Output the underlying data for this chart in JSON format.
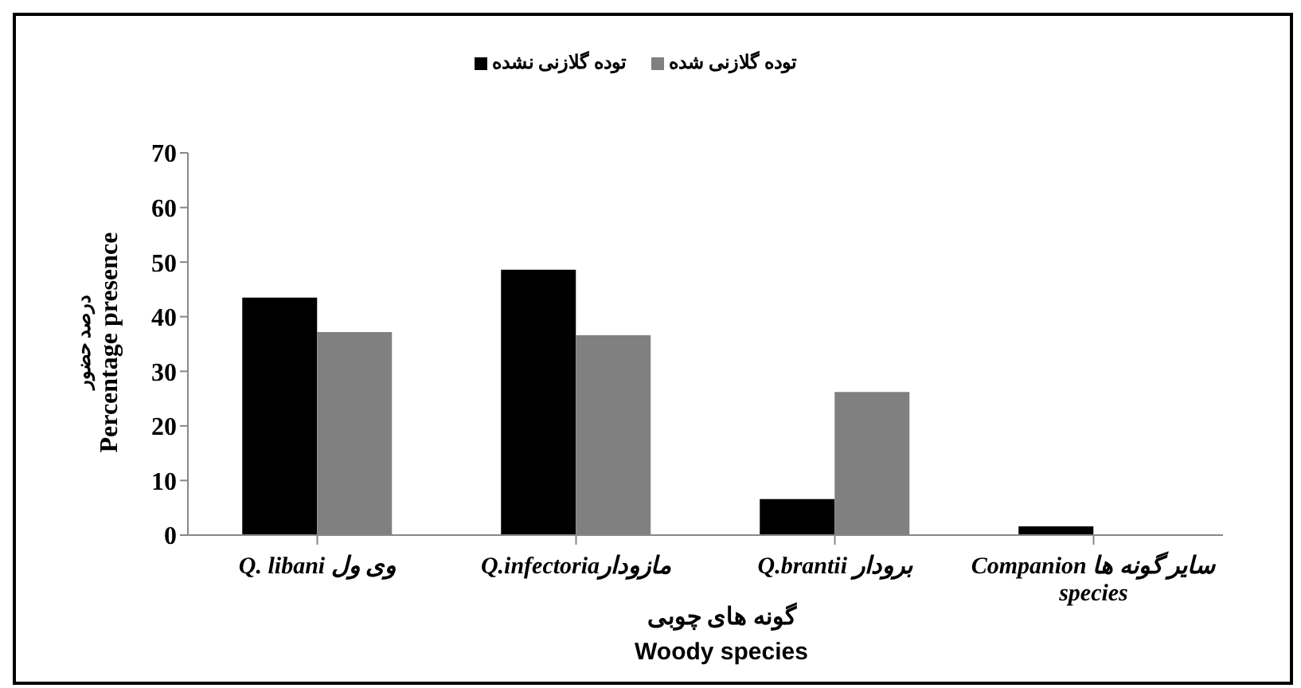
{
  "chart_data": {
    "type": "bar",
    "xlabel": "گونه های چوبی\nWoody species",
    "ylabel": "درصد حضور\nPercentage presence",
    "categories": [
      "Q. libani وی ول",
      "Q.infectoriaمازودار",
      "Q.brantii  برودار",
      "Companion سایر گونه ها species"
    ],
    "series": [
      {
        "name": "توده گلازنی نشده",
        "color": "#000000",
        "values": [
          43.5,
          48.6,
          6.6,
          1.6
        ]
      },
      {
        "name": "توده گلازنی شده",
        "color": "#808080",
        "values": [
          37.2,
          36.6,
          26.2,
          0
        ]
      }
    ],
    "ylim": [
      0,
      70
    ],
    "yticks": [
      0,
      10,
      20,
      30,
      40,
      50,
      60,
      70
    ],
    "grid": false,
    "legend": "top"
  }
}
